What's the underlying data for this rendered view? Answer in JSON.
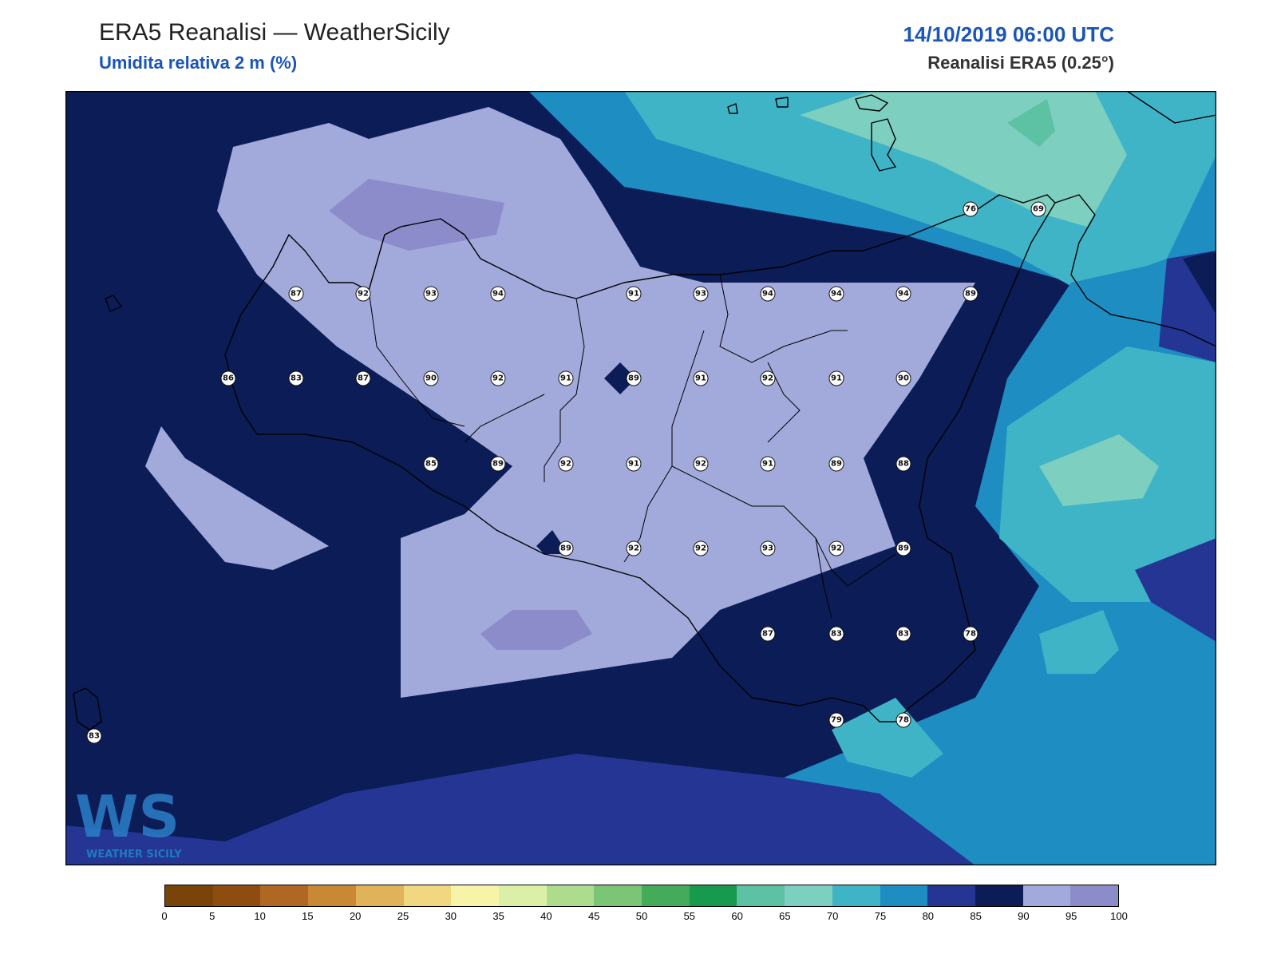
{
  "header": {
    "title": "ERA5 Reanalisi — WeatherSicily",
    "subtitle": "Umidita relativa 2 m (%)",
    "datetime": "14/10/2019 06:00 UTC",
    "source": "Reanalisi ERA5 (0.25°)"
  },
  "map": {
    "variable": "relative humidity 2 m",
    "station_values": [
      87,
      92,
      93,
      94,
      91,
      93,
      94,
      94,
      94,
      89,
      76,
      69,
      86,
      83,
      87,
      90,
      92,
      91,
      89,
      91,
      92,
      91,
      90,
      85,
      89,
      92,
      91,
      92,
      91,
      89,
      88,
      89,
      92,
      92,
      93,
      92,
      89,
      87,
      83,
      83,
      78,
      79,
      78,
      83
    ]
  },
  "colorbar": {
    "ticks": [
      "0",
      "5",
      "10",
      "15",
      "20",
      "25",
      "30",
      "35",
      "40",
      "45",
      "50",
      "55",
      "60",
      "65",
      "70",
      "75",
      "80",
      "85",
      "90",
      "95",
      "100"
    ],
    "colors": [
      "#7a4309",
      "#8f4c10",
      "#b06722",
      "#c98834",
      "#e0b25a",
      "#f1d77f",
      "#f7f3a7",
      "#dcefa6",
      "#aedc8e",
      "#7cc576",
      "#44ab5a",
      "#179a4e",
      "#5cc2a3",
      "#7dcfbf",
      "#3fb4c7",
      "#1d8dc2",
      "#253594",
      "#0b1c57",
      "#a2aadb",
      "#8d8cca"
    ]
  },
  "logo": {
    "text": "WS",
    "caption": "WEATHER SICILY"
  }
}
